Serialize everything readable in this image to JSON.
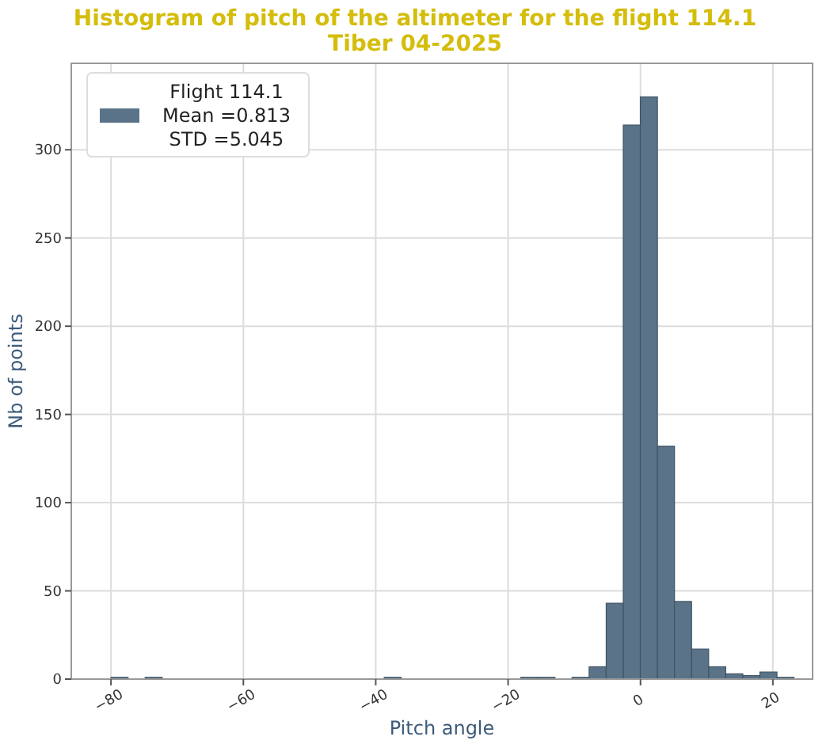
{
  "chart_data": {
    "type": "histogram",
    "title": "Histogram of pitch of the altimeter for the flight 114.1\nTiber 04-2025",
    "xlabel": "Pitch angle",
    "ylabel": "Nb of points",
    "bins": [
      -80,
      -77.42,
      -74.84,
      -72.26,
      -69.68,
      -67.1,
      -64.52,
      -61.94,
      -59.36,
      -56.78,
      -54.2,
      -51.62,
      -49.04,
      -46.46,
      -43.88,
      -41.3,
      -38.72,
      -36.14,
      -33.56,
      -30.98,
      -28.4,
      -25.82,
      -23.24,
      -20.66,
      -18.08,
      -15.5,
      -12.92,
      -10.34,
      -7.76,
      -5.18,
      -2.6,
      -0.02,
      2.56,
      5.14,
      7.72,
      10.3,
      12.88,
      15.46,
      18.04,
      20.62,
      23.2
    ],
    "series": [
      {
        "name": "Flight 114.1\nMean =0.813\nSTD =5.045",
        "color": "#5a7388",
        "values": [
          1,
          0,
          1,
          0,
          0,
          0,
          0,
          0,
          0,
          0,
          0,
          0,
          0,
          0,
          0,
          0,
          1,
          0,
          0,
          0,
          0,
          0,
          0,
          0,
          1,
          1,
          0,
          1,
          7,
          43,
          314,
          330,
          132,
          44,
          17,
          7,
          3,
          2,
          4,
          1
        ]
      }
    ],
    "xlim": [
      -86,
      26
    ],
    "ylim": [
      0,
      349
    ],
    "xticks": [
      -80,
      -60,
      -40,
      -20,
      0,
      20
    ],
    "yticks": [
      0,
      50,
      100,
      150,
      200,
      250,
      300
    ],
    "grid": true,
    "legend": "top left"
  }
}
